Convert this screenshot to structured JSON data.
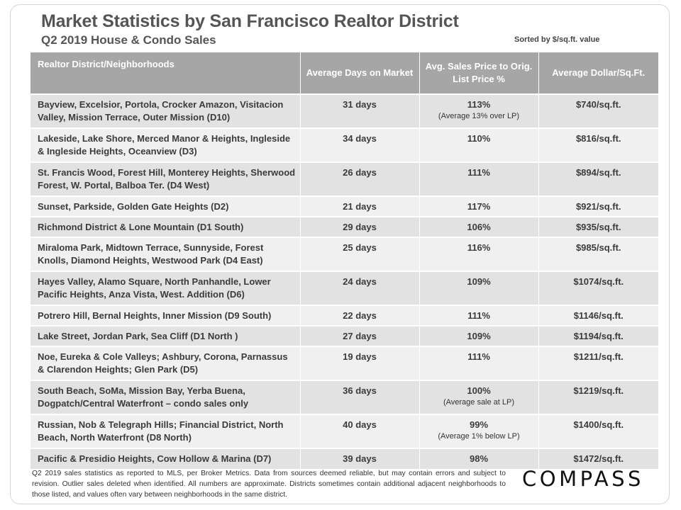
{
  "header": {
    "title": "Market Statistics by San Francisco Realtor District",
    "subtitle": "Q2 2019 House & Condo Sales",
    "sort_note": "Sorted by $/sq.ft. value"
  },
  "table": {
    "columns": [
      "Realtor District/Neighborhoods",
      "Average Days on Market",
      "Avg. Sales Price to Orig. List Price %",
      "Average Dollar/Sq.Ft."
    ],
    "rows": [
      {
        "district": "Bayview, Excelsior, Portola, Crocker Amazon, Visitacion Valley, Mission Terrace, Outer Mission (D10)",
        "days": "31 days",
        "price_pct": "113%",
        "price_note": "(Average 13% over LP)",
        "dollar_sqft": "$740/sq.ft."
      },
      {
        "district": "Lakeside, Lake Shore, Merced Manor & Heights, Ingleside & Ingleside Heights, Oceanview (D3)",
        "days": "34 days",
        "price_pct": "110%",
        "price_note": "",
        "dollar_sqft": "$816/sq.ft."
      },
      {
        "district": "St. Francis Wood, Forest Hill, Monterey Heights, Sherwood Forest, W. Portal, Balboa Ter. (D4 West)",
        "days": "26 days",
        "price_pct": "111%",
        "price_note": "",
        "dollar_sqft": "$894/sq.ft."
      },
      {
        "district": "Sunset, Parkside, Golden Gate Heights (D2)",
        "days": "21 days",
        "price_pct": "117%",
        "price_note": "",
        "dollar_sqft": "$921/sq.ft."
      },
      {
        "district": "Richmond District & Lone Mountain (D1 South)",
        "days": "29 days",
        "price_pct": "106%",
        "price_note": "",
        "dollar_sqft": "$935/sq.ft."
      },
      {
        "district": "Miraloma Park, Midtown Terrace, Sunnyside, Forest Knolls, Diamond Heights, Westwood Park (D4 East)",
        "days": "25 days",
        "price_pct": "116%",
        "price_note": "",
        "dollar_sqft": "$985/sq.ft."
      },
      {
        "district": "Hayes Valley, Alamo Square, North Panhandle, Lower Pacific Heights, Anza Vista, West. Addition (D6)",
        "days": "24 days",
        "price_pct": "109%",
        "price_note": "",
        "dollar_sqft": "$1074/sq.ft."
      },
      {
        "district": "Potrero Hill, Bernal Heights, Inner Mission (D9 South)",
        "days": "22 days",
        "price_pct": "111%",
        "price_note": "",
        "dollar_sqft": "$1146/sq.ft."
      },
      {
        "district": "Lake Street, Jordan Park, Sea Cliff (D1 North )",
        "days": "27 days",
        "price_pct": "109%",
        "price_note": "",
        "dollar_sqft": "$1194/sq.ft."
      },
      {
        "district": "Noe, Eureka & Cole Valleys; Ashbury, Corona, Parnassus & Clarendon Heights; Glen Park (D5)",
        "days": "19 days",
        "price_pct": "111%",
        "price_note": "",
        "dollar_sqft": "$1211/sq.ft."
      },
      {
        "district": "South Beach, SoMa, Mission Bay, Yerba Buena, Dogpatch/Central Waterfront – condo sales only",
        "days": "36 days",
        "price_pct": "100%",
        "price_note": "(Average sale at LP)",
        "dollar_sqft": "$1219/sq.ft."
      },
      {
        "district": "Russian, Nob & Telegraph Hills; Financial District, North Beach, North Waterfront (D8 North)",
        "days": "40 days",
        "price_pct": "99%",
        "price_note": "(Average 1% below LP)",
        "dollar_sqft": "$1400/sq.ft."
      },
      {
        "district": "Pacific & Presidio Heights, Cow Hollow & Marina (D7)",
        "days": "39 days",
        "price_pct": "98%",
        "price_note": "",
        "dollar_sqft": "$1472/sq.ft."
      }
    ]
  },
  "footnote": "Q2 2019 sales statistics as reported to MLS, per Broker Metrics. Data from sources deemed reliable, but may contain errors and subject to revision. Outlier sales deleted when identified. All numbers are approximate. Districts sometimes contain additional adjacent neighborhoods to those listed, and values often vary between neighborhoods in the same district.",
  "logo": "COMPASS"
}
